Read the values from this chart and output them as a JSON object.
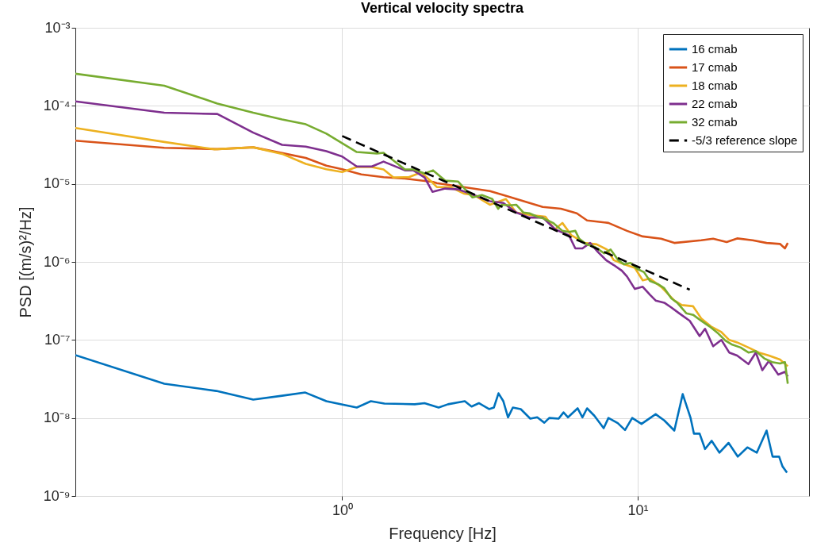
{
  "chart_data": {
    "type": "line",
    "title": "Vertical velocity spectra",
    "xlabel": "Frequency [Hz]",
    "ylabel": "PSD  [(m/s)²/Hz]",
    "log": "xy",
    "grid": true,
    "legend": "top right",
    "xlim": [
      0.125,
      38
    ],
    "ylim": [
      1e-09,
      0.001
    ],
    "xticks": [
      {
        "value": 1,
        "label": "10⁰"
      },
      {
        "value": 10,
        "label": "10¹"
      }
    ],
    "yticks": [
      {
        "value": 1e-09,
        "label": "10⁻⁹"
      },
      {
        "value": 1e-08,
        "label": "10⁻⁸"
      },
      {
        "value": 1e-07,
        "label": "10⁻⁷"
      },
      {
        "value": 1e-06,
        "label": "10⁻⁶"
      },
      {
        "value": 1e-05,
        "label": "10⁻⁵"
      },
      {
        "value": 0.0001,
        "label": "10⁻⁴"
      },
      {
        "value": 0.001,
        "label": "10⁻³"
      }
    ],
    "series": [
      {
        "name": "16 cmab",
        "color": "#0072bd",
        "x": [
          0.125,
          0.25,
          0.375,
          0.5,
          0.626,
          0.75,
          0.884,
          1.12,
          1.25,
          1.39,
          1.76,
          1.9,
          2.12,
          2.28,
          2.6,
          2.74,
          2.9,
          3.14,
          3.26,
          3.38,
          3.51,
          3.64,
          3.78,
          4.02,
          4.33,
          4.57,
          4.83,
          5.02,
          5.4,
          5.61,
          5.81,
          6.26,
          6.5,
          6.74,
          7.13,
          7.67,
          7.96,
          8.56,
          9.06,
          9.58,
          10.3,
          11.5,
          12.3,
          13.3,
          14.2,
          15.1,
          15.5,
          16.2,
          16.9,
          17.8,
          18.9,
          20.3,
          21.8,
          23.5,
          25.3,
          27.3,
          28.6,
          30.1,
          30.9,
          32.0
        ],
        "values": [
          6.4e-08,
          2.75e-08,
          2.22e-08,
          1.72e-08,
          1.93e-08,
          2.12e-08,
          1.64e-08,
          1.36e-08,
          1.64e-08,
          1.53e-08,
          1.5e-08,
          1.55e-08,
          1.36e-08,
          1.5e-08,
          1.64e-08,
          1.4e-08,
          1.55e-08,
          1.3e-08,
          1.36e-08,
          2.07e-08,
          1.64e-08,
          1.02e-08,
          1.36e-08,
          1.3e-08,
          9.8e-09,
          1.02e-08,
          8.7e-09,
          1e-08,
          9.8e-09,
          1.18e-08,
          1.02e-08,
          1.33e-08,
          1.02e-08,
          1.33e-08,
          1.07e-08,
          7.4e-09,
          1e-08,
          8.6e-09,
          7e-09,
          1e-08,
          8.4e-09,
          1.12e-08,
          9.3e-09,
          6.9e-09,
          2.02e-08,
          1e-08,
          6.3e-09,
          6.3e-09,
          4e-09,
          5.1e-09,
          3.6e-09,
          4.8e-09,
          3.2e-09,
          4.2e-09,
          3.6e-09,
          6.9e-09,
          3.2e-09,
          3.2e-09,
          2.4e-09,
          2e-09
        ]
      },
      {
        "name": "17 cmab",
        "color": "#d95319",
        "x": [
          0.125,
          0.25,
          0.378,
          0.5,
          0.626,
          0.753,
          0.884,
          1.0,
          1.16,
          1.38,
          1.63,
          2.03,
          2.09,
          2.58,
          3.16,
          3.51,
          4.05,
          4.77,
          5.5,
          6.22,
          6.74,
          7.96,
          9.2,
          10.4,
          12.0,
          13.3,
          16.4,
          18.0,
          20.0,
          21.7,
          24.5,
          27.3,
          30.3,
          31.5,
          32.2
        ],
        "values": [
          3.58e-05,
          2.9e-05,
          2.79e-05,
          2.94e-05,
          2.48e-05,
          2.15e-05,
          1.71e-05,
          1.54e-05,
          1.32e-05,
          1.22e-05,
          1.17e-05,
          1.06e-05,
          1.02e-05,
          9.1e-06,
          8.1e-06,
          7.2e-06,
          6.1e-06,
          5.06e-06,
          4.8e-06,
          4.2e-06,
          3.4e-06,
          3.16e-06,
          2.5e-06,
          2.12e-06,
          1.98e-06,
          1.75e-06,
          1.89e-06,
          1.98e-06,
          1.8e-06,
          2e-06,
          1.89e-06,
          1.75e-06,
          1.7e-06,
          1.49e-06,
          1.75e-06
        ]
      },
      {
        "name": "18 cmab",
        "color": "#edb120",
        "x": [
          0.125,
          0.25,
          0.37,
          0.5,
          0.626,
          0.753,
          0.884,
          1.0,
          1.12,
          1.26,
          1.38,
          1.49,
          1.68,
          1.85,
          2.03,
          2.09,
          2.32,
          2.58,
          2.79,
          3.16,
          3.58,
          3.88,
          4.3,
          4.87,
          5.24,
          5.56,
          5.96,
          6.62,
          7.26,
          7.87,
          8.3,
          9.0,
          9.78,
          10.4,
          11.0,
          12.0,
          13.3,
          14.1,
          15.4,
          16.4,
          17.7,
          19.2,
          20.4,
          21.7,
          23.7,
          25.7,
          27.8,
          30.3,
          32.2
        ],
        "values": [
          5.2e-05,
          3.44e-05,
          2.77e-05,
          2.94e-05,
          2.42e-05,
          1.8e-05,
          1.54e-05,
          1.42e-05,
          1.64e-05,
          1.64e-05,
          1.53e-05,
          1.21e-05,
          1.22e-05,
          1.4e-05,
          1.02e-05,
          9.1e-06,
          9.1e-06,
          7.5e-06,
          7.2e-06,
          5.4e-06,
          6.4e-06,
          4.3e-06,
          4e-06,
          3.8e-06,
          2.6e-06,
          3.16e-06,
          2.2e-06,
          1.75e-06,
          1.68e-06,
          1.44e-06,
          1.05e-06,
          9.3e-07,
          8.4e-07,
          5.8e-07,
          6.1e-07,
          4.8e-07,
          3.2e-07,
          2.8e-07,
          2.7e-07,
          1.89e-07,
          1.49e-07,
          1.26e-07,
          1e-07,
          9.3e-08,
          8e-08,
          6.9e-08,
          6.3e-08,
          5.6e-08,
          4.6e-08
        ]
      },
      {
        "name": "22 cmab",
        "color": "#7e2f8e",
        "x": [
          0.125,
          0.25,
          0.378,
          0.5,
          0.626,
          0.753,
          0.884,
          1.0,
          1.12,
          1.26,
          1.38,
          1.63,
          1.74,
          1.9,
          2.02,
          2.23,
          2.47,
          2.79,
          3.16,
          3.51,
          3.88,
          4.3,
          4.77,
          5.27,
          5.85,
          6.15,
          6.5,
          6.9,
          7.35,
          7.82,
          8.3,
          8.84,
          9.2,
          9.78,
          10.4,
          11.0,
          11.5,
          12.3,
          13.0,
          13.8,
          15.0,
          16.2,
          16.9,
          18.0,
          19.2,
          20.4,
          21.7,
          23.7,
          25.1,
          26.4,
          27.8,
          29.9,
          31.5,
          32.2
        ],
        "values": [
          0.000114,
          8.15e-05,
          7.85e-05,
          4.53e-05,
          3.16e-05,
          3e-05,
          2.62e-05,
          2.24e-05,
          1.67e-05,
          1.67e-05,
          1.93e-05,
          1.49e-05,
          1.49e-05,
          1.21e-05,
          7.9e-06,
          8.7e-06,
          8.5e-06,
          7.2e-06,
          6e-06,
          5.7e-06,
          4.3e-06,
          3.7e-06,
          3.7e-06,
          2.6e-06,
          2.2e-06,
          1.49e-06,
          1.49e-06,
          1.75e-06,
          1.33e-06,
          1.05e-06,
          9.1e-07,
          7.7e-07,
          6.5e-07,
          4.5e-07,
          4.8e-07,
          3.8e-07,
          3.2e-07,
          3e-07,
          2.6e-07,
          2.2e-07,
          1.76e-07,
          1.12e-07,
          1.39e-07,
          8.3e-08,
          1e-07,
          6.9e-08,
          6.3e-08,
          4.9e-08,
          6.9e-08,
          4.1e-08,
          5.4e-08,
          3.6e-08,
          3.9e-08,
          3.4e-08
        ]
      },
      {
        "name": "32 cmab",
        "color": "#77ac30",
        "x": [
          0.125,
          0.25,
          0.378,
          0.5,
          0.626,
          0.753,
          0.884,
          1.12,
          1.31,
          1.38,
          1.63,
          1.74,
          1.9,
          2.03,
          2.23,
          2.47,
          2.76,
          2.97,
          3.22,
          3.37,
          3.47,
          3.69,
          3.88,
          4.1,
          4.3,
          4.57,
          4.8,
          5.17,
          5.56,
          5.85,
          6.15,
          6.34,
          6.7,
          7.17,
          7.7,
          8.1,
          8.6,
          9.0,
          9.45,
          9.99,
          10.5,
          11.0,
          11.7,
          12.3,
          13.0,
          13.6,
          14.6,
          15.4,
          16.4,
          17.5,
          18.6,
          19.8,
          20.9,
          22.3,
          23.7,
          25.1,
          26.8,
          28.5,
          30.3,
          31.5,
          32.2
        ],
        "values": [
          0.000258,
          0.000181,
          0.000107,
          8.15e-05,
          6.7e-05,
          5.8e-05,
          4.4e-05,
          2.56e-05,
          2.45e-05,
          2.5e-05,
          1.53e-05,
          1.53e-05,
          1.36e-05,
          1.49e-05,
          1.1e-05,
          1.07e-05,
          6.7e-06,
          7.2e-06,
          6.4e-06,
          4.8e-06,
          5.4e-06,
          5.3e-06,
          5.4e-06,
          4.3e-06,
          4.2e-06,
          3.8e-06,
          3.6e-06,
          3.16e-06,
          2.5e-06,
          2.42e-06,
          2.5e-06,
          1.98e-06,
          1.68e-06,
          1.55e-06,
          1.29e-06,
          1.44e-06,
          1.05e-06,
          9.3e-07,
          9.7e-07,
          8.1e-07,
          7.4e-07,
          5.7e-07,
          5.2e-07,
          4.6e-07,
          3.4e-07,
          3e-07,
          2.2e-07,
          2.1e-07,
          1.76e-07,
          1.49e-07,
          1.24e-07,
          9.8e-08,
          8.7e-08,
          8e-08,
          6.9e-08,
          7.2e-08,
          5.8e-08,
          5.2e-08,
          5e-08,
          5.2e-08,
          2.75e-08
        ]
      },
      {
        "name": "-5/3 reference slope",
        "color": "#000000",
        "line_style": "dashed",
        "x": [
          1,
          15
        ],
        "values": [
          4.1e-05,
          4.4e-07
        ]
      }
    ]
  }
}
